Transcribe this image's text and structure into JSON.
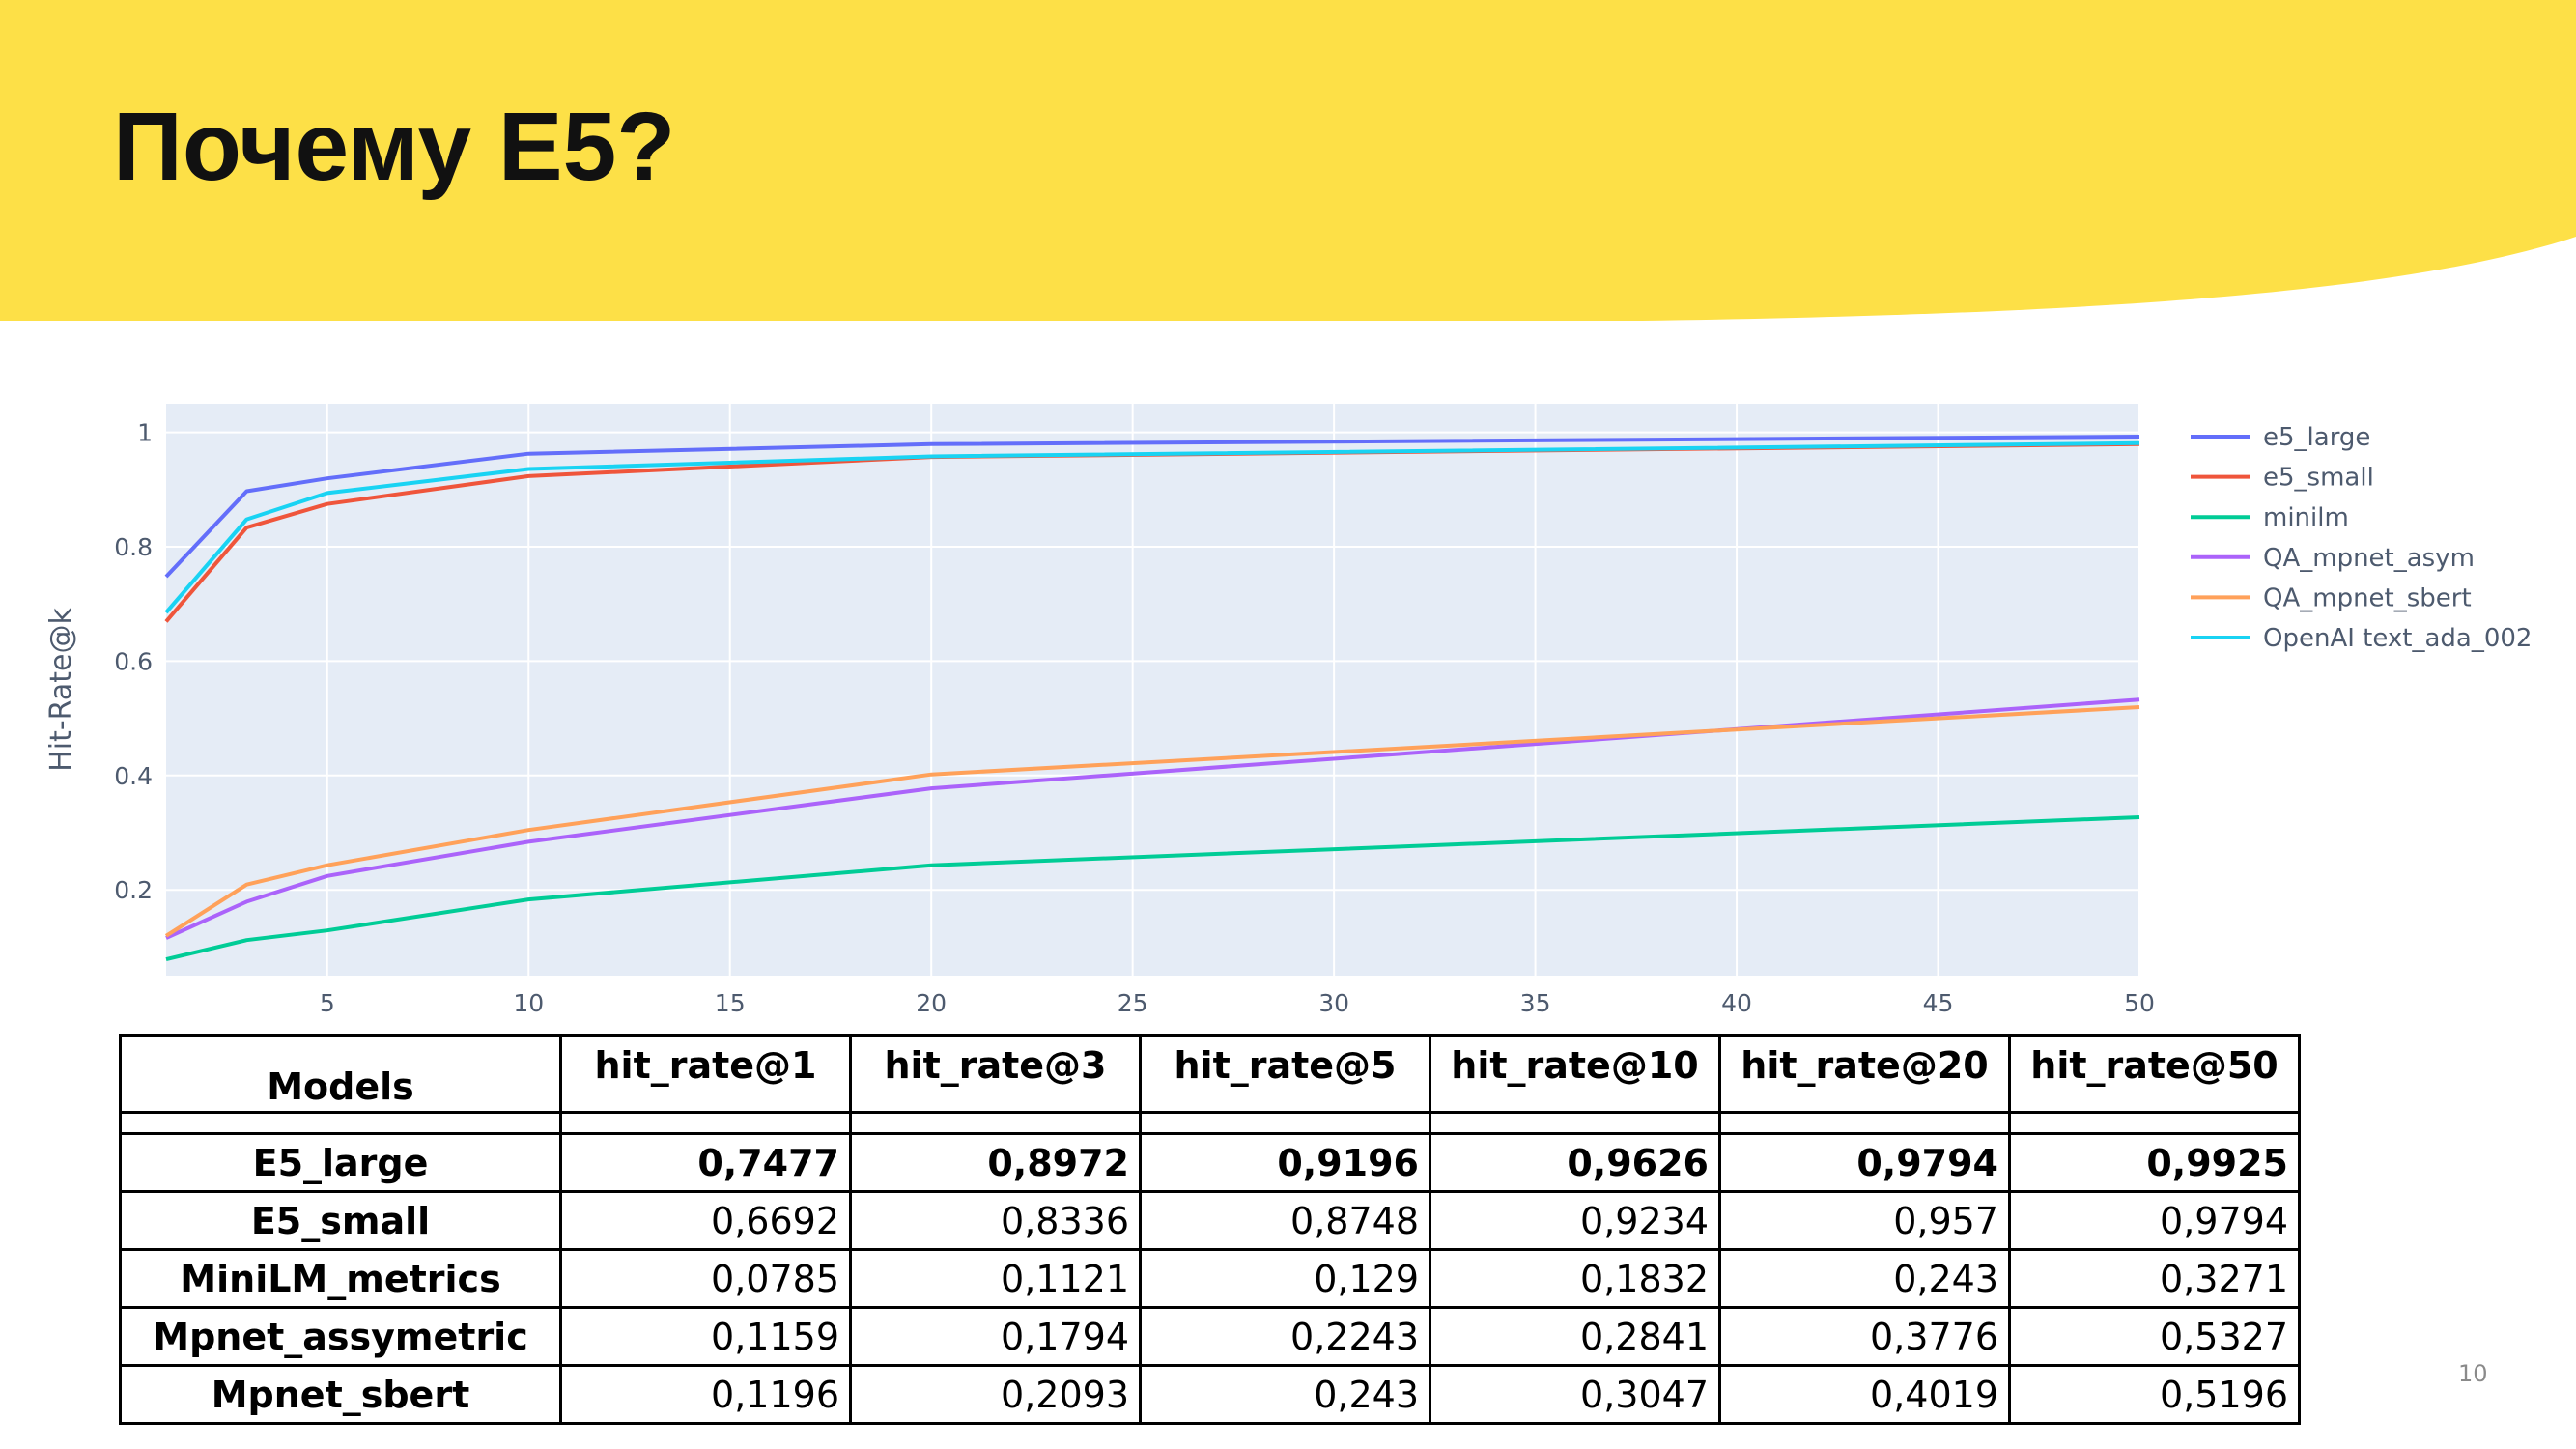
{
  "slide": {
    "title": "Почему E5?",
    "page_number": "10"
  },
  "colors": {
    "banner": "#FDE047",
    "plot_bg": "#E5ECF6",
    "grid": "#FFFFFF"
  },
  "chart_data": {
    "type": "line",
    "title": "",
    "xlabel": "",
    "ylabel": "Hit-Rate@k",
    "xlim": [
      1,
      50
    ],
    "ylim": [
      0.05,
      1.05
    ],
    "x_ticks": [
      5,
      10,
      15,
      20,
      25,
      30,
      35,
      40,
      45,
      50
    ],
    "y_ticks": [
      0.2,
      0.4,
      0.6,
      0.8,
      1
    ],
    "y_tick_labels": [
      "0.2",
      "0.4",
      "0.6",
      "0.8",
      "1"
    ],
    "grid": true,
    "legend_position": "right",
    "x": [
      1,
      3,
      5,
      10,
      20,
      50
    ],
    "series": [
      {
        "name": "e5_large",
        "color": "#636EFA",
        "values": [
          0.7477,
          0.8972,
          0.9196,
          0.9626,
          0.9794,
          0.9925
        ]
      },
      {
        "name": "e5_small",
        "color": "#EF553B",
        "values": [
          0.6692,
          0.8336,
          0.8748,
          0.9234,
          0.957,
          0.9794
        ]
      },
      {
        "name": "minilm",
        "color": "#00CC96",
        "values": [
          0.0785,
          0.1121,
          0.129,
          0.1832,
          0.243,
          0.3271
        ]
      },
      {
        "name": "QA_mpnet_asym",
        "color": "#AB63FA",
        "values": [
          0.1159,
          0.1794,
          0.2243,
          0.2841,
          0.3776,
          0.5327
        ]
      },
      {
        "name": "QA_mpnet_sbert",
        "color": "#FFA15A",
        "values": [
          0.1196,
          0.2093,
          0.243,
          0.3047,
          0.4019,
          0.5196
        ]
      },
      {
        "name": "OpenAI text_ada_002",
        "color": "#19D3F3",
        "values": [
          0.685,
          0.848,
          0.894,
          0.936,
          0.958,
          0.981
        ]
      }
    ]
  },
  "table": {
    "headers": [
      "Models",
      "hit_rate@1",
      "hit_rate@3",
      "hit_rate@5",
      "hit_rate@10",
      "hit_rate@20",
      "hit_rate@50"
    ],
    "rows": [
      {
        "model": "E5_large",
        "values": [
          "0,7477",
          "0,8972",
          "0,9196",
          "0,9626",
          "0,9794",
          "0,9925"
        ]
      },
      {
        "model": "E5_small",
        "values": [
          "0,6692",
          "0,8336",
          "0,8748",
          "0,9234",
          "0,957",
          "0,9794"
        ]
      },
      {
        "model": "MiniLM_metrics",
        "values": [
          "0,0785",
          "0,1121",
          "0,129",
          "0,1832",
          "0,243",
          "0,3271"
        ]
      },
      {
        "model": "Mpnet_assymetric",
        "values": [
          "0,1159",
          "0,1794",
          "0,2243",
          "0,2841",
          "0,3776",
          "0,5327"
        ]
      },
      {
        "model": "Mpnet_sbert",
        "values": [
          "0,1196",
          "0,2093",
          "0,243",
          "0,3047",
          "0,4019",
          "0,5196"
        ]
      }
    ]
  }
}
